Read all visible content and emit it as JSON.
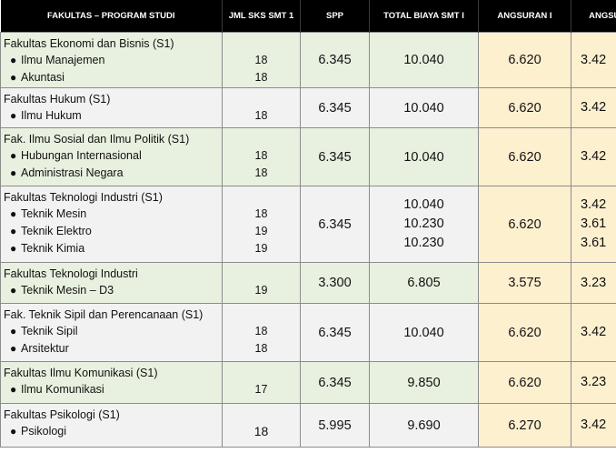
{
  "headers": [
    "FAKULTAS – PROGRAM STUDI",
    "JML SKS SMT 1",
    "SPP",
    "TOTAL BIAYA SMT I",
    "ANGSURAN I",
    "ANGSURAN II"
  ],
  "rows": [
    {
      "faculty": "Fakultas Ekonomi dan Bisnis (S1)",
      "programs": [
        "Ilmu Manajemen",
        "Akuntasi"
      ],
      "sks": [
        "18",
        "18"
      ],
      "spp": "6.345",
      "total": [
        "10.040"
      ],
      "ang1": "6.620",
      "ang2": [
        "3.42"
      ]
    },
    {
      "faculty": "Fakultas Hukum (S1)",
      "programs": [
        "Ilmu Hukum"
      ],
      "sks": [
        "18"
      ],
      "spp": "6.345",
      "total": [
        "10.040"
      ],
      "ang1": "6.620",
      "ang2": [
        "3.42"
      ]
    },
    {
      "faculty": "Fak. Ilmu Sosial dan Ilmu Politik (S1)",
      "programs": [
        "Hubungan Internasional",
        "Administrasi Negara"
      ],
      "sks": [
        "18",
        "18"
      ],
      "spp": "6.345",
      "total": [
        "10.040"
      ],
      "ang1": "6.620",
      "ang2": [
        "3.42"
      ]
    },
    {
      "faculty": "Fakultas Teknologi Industri (S1)",
      "programs": [
        "Teknik Mesin",
        "Teknik Elektro",
        "Teknik Kimia"
      ],
      "sks": [
        "18",
        "19",
        "19"
      ],
      "spp": "6.345",
      "total": [
        "10.040",
        "10.230",
        "10.230"
      ],
      "ang1": "6.620",
      "ang2": [
        "3.42",
        "3.61",
        "3.61"
      ]
    },
    {
      "faculty": "Fakultas Teknologi Industri",
      "programs": [
        "Teknik Mesin – D3"
      ],
      "sks": [
        "19"
      ],
      "spp": "3.300",
      "total": [
        "6.805"
      ],
      "ang1": "3.575",
      "ang2": [
        "3.23"
      ]
    },
    {
      "faculty": "Fak. Teknik Sipil dan Perencanaan (S1)",
      "programs": [
        "Teknik Sipil",
        "Arsitektur"
      ],
      "sks": [
        "18",
        "18"
      ],
      "spp": "6.345",
      "total": [
        "10.040"
      ],
      "ang1": "6.620",
      "ang2": [
        "3.42"
      ]
    },
    {
      "faculty": "Fakultas Ilmu Komunikasi (S1)",
      "programs": [
        "Ilmu Komunikasi"
      ],
      "sks": [
        "17"
      ],
      "spp": "6.345",
      "total": [
        "9.850"
      ],
      "ang1": "6.620",
      "ang2": [
        "3.23"
      ]
    },
    {
      "faculty": "Fakultas Psikologi (S1)",
      "programs": [
        "Psikologi"
      ],
      "sks": [
        "18"
      ],
      "spp": "5.995",
      "total": [
        "9.690"
      ],
      "ang1": "6.270",
      "ang2": [
        "3.42"
      ]
    }
  ],
  "colors": {
    "header_bg": "#000000",
    "green_row": "#e8f1df",
    "gray_row": "#f2f2f2",
    "angsuran_bg": "#fdf0cf"
  }
}
